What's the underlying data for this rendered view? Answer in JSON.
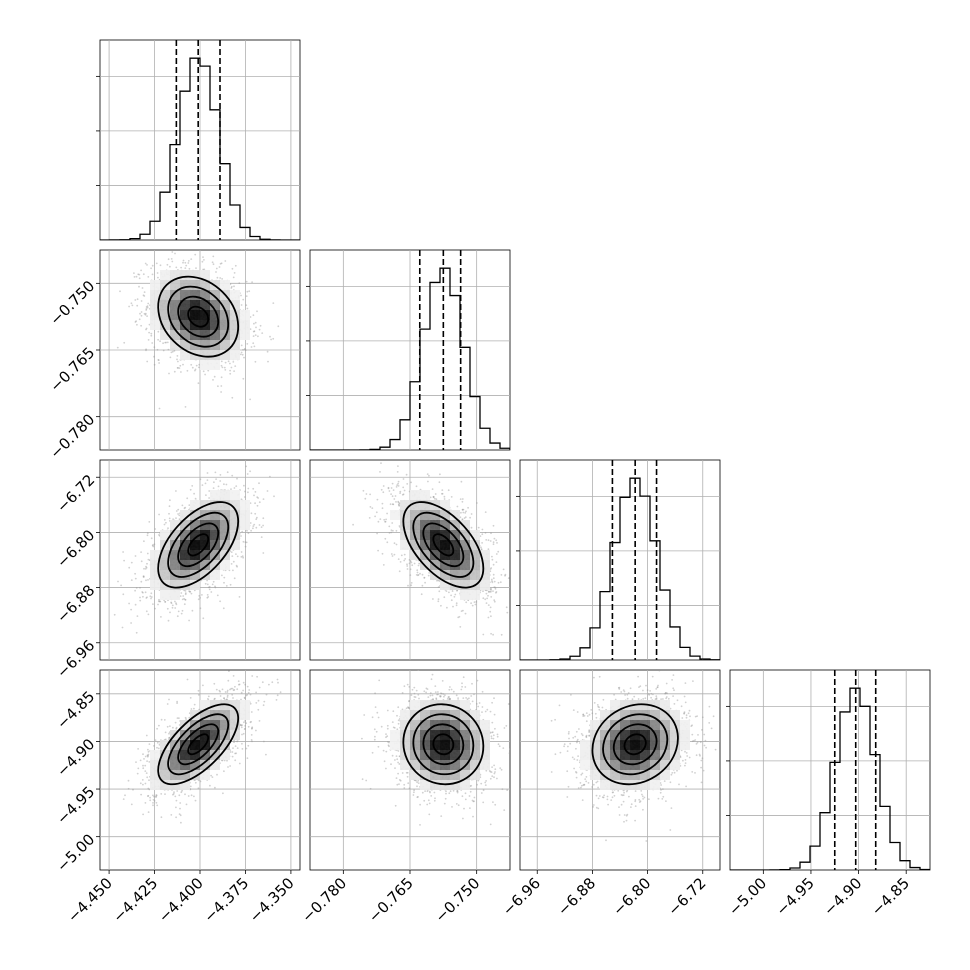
{
  "chart_data": {
    "type": "corner",
    "grid": true,
    "parameters": [
      {
        "index": 0,
        "range": [
          -4.455,
          -4.345
        ],
        "ticks": [
          -4.45,
          -4.425,
          -4.4,
          -4.375,
          -4.35
        ],
        "tick_labels": [
          "−4.450",
          "−4.425",
          "−4.400",
          "−4.375",
          "−4.350"
        ],
        "mean": -4.401,
        "sigma": 0.011,
        "quantiles": [
          -4.413,
          -4.401,
          -4.389
        ]
      },
      {
        "index": 1,
        "range": [
          -0.7875,
          -0.7425
        ],
        "ticks": [
          -0.78,
          -0.765,
          -0.75
        ],
        "tick_labels": [
          "−0.780",
          "−0.765",
          "−0.750"
        ],
        "mean": -0.7575,
        "sigma": 0.0045,
        "quantiles": [
          -0.7628,
          -0.7575,
          -0.7536
        ]
      },
      {
        "index": 2,
        "range": [
          -6.985,
          -6.695
        ],
        "ticks": [
          -6.96,
          -6.88,
          -6.8,
          -6.72
        ],
        "tick_labels": [
          "−6.96",
          "−6.88",
          "−6.80",
          "−6.72"
        ],
        "mean": -6.818,
        "sigma": 0.031,
        "quantiles": [
          -6.851,
          -6.818,
          -6.787
        ]
      },
      {
        "index": 3,
        "range": [
          -5.035,
          -4.825
        ],
        "ticks": [
          -5.0,
          -4.95,
          -4.9,
          -4.85
        ],
        "tick_labels": [
          "−5.00",
          "−4.95",
          "−4.90",
          "−4.85"
        ],
        "mean": -4.903,
        "sigma": 0.021,
        "quantiles": [
          -4.925,
          -4.903,
          -4.882
        ]
      }
    ],
    "correlations": [
      {
        "pair": [
          1,
          0
        ],
        "rho": -0.25
      },
      {
        "pair": [
          2,
          0
        ],
        "rho": 0.55
      },
      {
        "pair": [
          2,
          1
        ],
        "rho": -0.55
      },
      {
        "pair": [
          3,
          0
        ],
        "rho": 0.65
      },
      {
        "pair": [
          3,
          1
        ],
        "rho": -0.05
      },
      {
        "pair": [
          3,
          2
        ],
        "rho": 0.15
      }
    ],
    "contour_levels": [
      0.5,
      1.0,
      1.5,
      2.0
    ],
    "colors": {
      "points": "#9a9a9a",
      "density": "#000000",
      "contour": "#000000"
    }
  }
}
